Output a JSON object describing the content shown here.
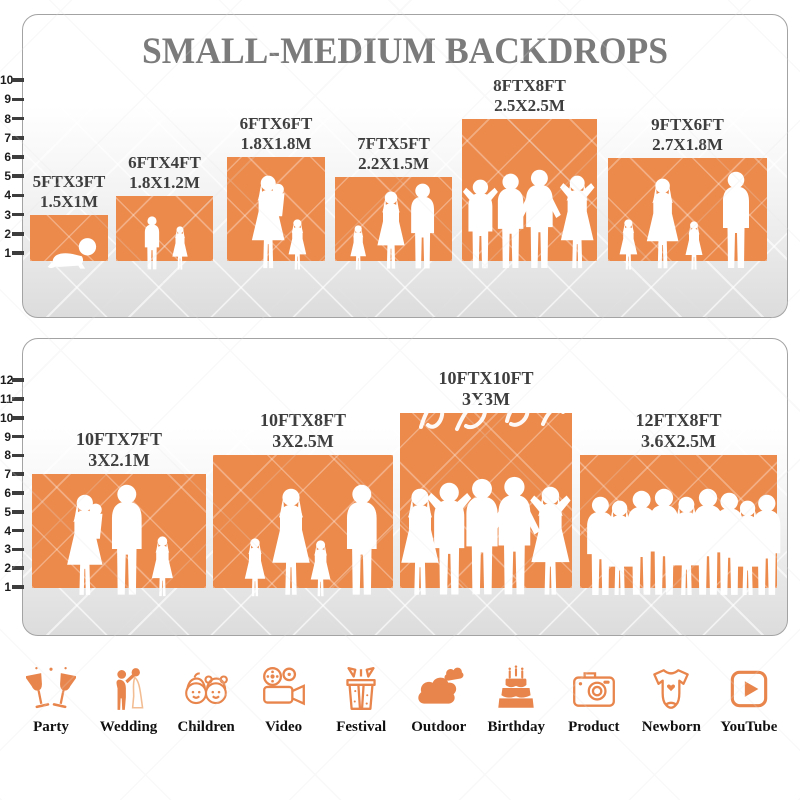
{
  "title": "SMALL-MEDIUM BACKDROPS",
  "panel1": {
    "ruler_ticks": [
      1,
      2,
      3,
      4,
      5,
      6,
      7,
      8,
      9,
      10
    ],
    "backdrops": [
      {
        "size_ft": "5FTX3FT",
        "size_m": "1.5X1M",
        "figures": "crawling-baby"
      },
      {
        "size_ft": "6FTX4FT",
        "size_m": "1.8X1.2M",
        "figures": "boy-and-girl"
      },
      {
        "size_ft": "6FTX6FT",
        "size_m": "1.8X1.8M",
        "figures": "mother-holding-baby-and-girl"
      },
      {
        "size_ft": "7FTX5FT",
        "size_m": "2.2X1.5M",
        "figures": "girl-woman-man"
      },
      {
        "size_ft": "8FTX8FT",
        "size_m": "2.5X2.5M",
        "figures": "group-of-adults-posing"
      },
      {
        "size_ft": "9FTX6FT",
        "size_m": "2.7X1.8M",
        "figures": "family-of-four"
      }
    ]
  },
  "panel2": {
    "ruler_ticks": [
      1,
      2,
      3,
      4,
      5,
      6,
      7,
      8,
      9,
      10,
      11,
      12
    ],
    "backdrops": [
      {
        "size_ft": "10FTX7FT",
        "size_m": "3X2.1M",
        "figures": "mother-father-child"
      },
      {
        "size_ft": "10FTX8FT",
        "size_m": "3X2.5M",
        "figures": "family-of-four"
      },
      {
        "size_ft": "10FTX10FT",
        "size_m": "3X3M",
        "figures": "group-of-five-adults"
      },
      {
        "size_ft": "12FTX8FT",
        "size_m": "3.6X2.5M",
        "figures": "crowd-of-nine"
      }
    ]
  },
  "categories": [
    {
      "label": "Party",
      "icon": "party-icon"
    },
    {
      "label": "Wedding",
      "icon": "wedding-icon"
    },
    {
      "label": "Children",
      "icon": "children-icon"
    },
    {
      "label": "Video",
      "icon": "video-icon"
    },
    {
      "label": "Festival",
      "icon": "festival-icon"
    },
    {
      "label": "Outdoor",
      "icon": "outdoor-icon"
    },
    {
      "label": "Birthday",
      "icon": "birthday-icon"
    },
    {
      "label": "Product",
      "icon": "product-icon"
    },
    {
      "label": "Newborn",
      "icon": "newborn-icon"
    },
    {
      "label": "YouTube",
      "icon": "youtube-icon"
    }
  ],
  "colors": {
    "backdrop_orange": "#EC8A4C",
    "icon_orange": "#E8854C",
    "title_gray": "#7B7B7B",
    "label_dark": "#3E3E3E"
  }
}
